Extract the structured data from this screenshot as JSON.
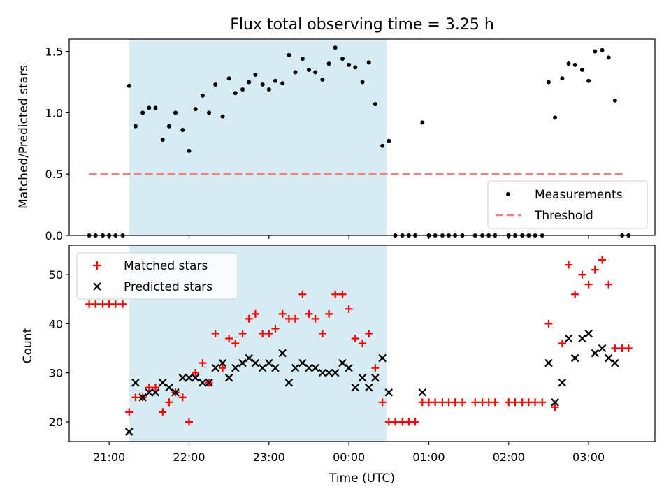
{
  "chart_data": {
    "type": "scatter",
    "title": "Flux total observing time = 3.25 h",
    "xlabel": "Time (UTC)",
    "x_tick_labels": [
      "21:00",
      "22:00",
      "23:00",
      "00:00",
      "01:00",
      "02:00",
      "03:00"
    ],
    "x_tick_hours": [
      21,
      22,
      23,
      24,
      25,
      26,
      27
    ],
    "xlim": [
      20.5,
      27.83
    ],
    "shaded_interval": [
      21.25,
      24.47
    ],
    "colors": {
      "shade": "#add8e6",
      "matched": "#ff0000",
      "predicted": "#000000",
      "threshold": "#f08080",
      "measurement": "#000000"
    },
    "grid": false,
    "panels": [
      {
        "ylabel": "Matched/Predicted stars",
        "ylim": [
          0,
          1.6
        ],
        "y_ticks": [
          0.0,
          0.5,
          1.0,
          1.5
        ],
        "y_tick_labels": [
          "0.0",
          "0.5",
          "1.0",
          "1.5"
        ],
        "legend_position": "lower-right",
        "legend": [
          "Measurements",
          "Threshold"
        ],
        "threshold": {
          "y": 0.5,
          "x_range": [
            20.75,
            27.45
          ]
        },
        "series": [
          {
            "name": "Measurements",
            "marker": "dot",
            "points": [
              [
                20.75,
                0
              ],
              [
                20.83,
                0
              ],
              [
                20.92,
                0
              ],
              [
                21.0,
                0
              ],
              [
                21.08,
                0
              ],
              [
                21.17,
                0
              ],
              [
                21.25,
                1.22
              ],
              [
                21.33,
                0.89
              ],
              [
                21.42,
                1.0
              ],
              [
                21.5,
                1.04
              ],
              [
                21.58,
                1.04
              ],
              [
                21.67,
                0.78
              ],
              [
                21.75,
                0.89
              ],
              [
                21.83,
                1.0
              ],
              [
                21.92,
                0.86
              ],
              [
                22.0,
                0.69
              ],
              [
                22.08,
                1.03
              ],
              [
                22.17,
                1.14
              ],
              [
                22.25,
                1.0
              ],
              [
                22.33,
                1.23
              ],
              [
                22.42,
                0.97
              ],
              [
                22.5,
                1.28
              ],
              [
                22.58,
                1.16
              ],
              [
                22.67,
                1.19
              ],
              [
                22.75,
                1.25
              ],
              [
                22.83,
                1.31
              ],
              [
                22.92,
                1.23
              ],
              [
                23.0,
                1.19
              ],
              [
                23.08,
                1.26
              ],
              [
                23.17,
                1.24
              ],
              [
                23.25,
                1.47
              ],
              [
                23.33,
                1.33
              ],
              [
                23.42,
                1.44
              ],
              [
                23.5,
                1.35
              ],
              [
                23.58,
                1.33
              ],
              [
                23.67,
                1.27
              ],
              [
                23.75,
                1.4
              ],
              [
                23.83,
                1.53
              ],
              [
                23.92,
                1.44
              ],
              [
                24.0,
                1.39
              ],
              [
                24.08,
                1.37
              ],
              [
                24.17,
                1.25
              ],
              [
                24.25,
                1.41
              ],
              [
                24.33,
                1.07
              ],
              [
                24.42,
                0.73
              ],
              [
                24.5,
                0.77
              ],
              [
                24.58,
                0
              ],
              [
                24.67,
                0
              ],
              [
                24.75,
                0
              ],
              [
                24.83,
                0
              ],
              [
                24.92,
                0.92
              ],
              [
                25.0,
                0
              ],
              [
                25.08,
                0
              ],
              [
                25.17,
                0
              ],
              [
                25.25,
                0
              ],
              [
                25.33,
                0
              ],
              [
                25.42,
                0
              ],
              [
                25.58,
                0
              ],
              [
                25.67,
                0
              ],
              [
                25.75,
                0
              ],
              [
                25.83,
                0
              ],
              [
                26.0,
                0
              ],
              [
                26.08,
                0
              ],
              [
                26.17,
                0
              ],
              [
                26.25,
                0
              ],
              [
                26.33,
                0
              ],
              [
                26.42,
                0
              ],
              [
                26.5,
                1.25
              ],
              [
                26.58,
                0.96
              ],
              [
                26.67,
                1.28
              ],
              [
                26.75,
                1.4
              ],
              [
                26.83,
                1.39
              ],
              [
                26.92,
                1.35
              ],
              [
                27.0,
                1.26
              ],
              [
                27.08,
                1.5
              ],
              [
                27.17,
                1.51
              ],
              [
                27.25,
                1.45
              ],
              [
                27.33,
                1.1
              ],
              [
                27.42,
                0
              ],
              [
                27.5,
                0
              ]
            ]
          }
        ]
      },
      {
        "ylabel": "Count",
        "ylim": [
          16,
          56
        ],
        "y_ticks": [
          20,
          30,
          40,
          50
        ],
        "y_tick_labels": [
          "20",
          "30",
          "40",
          "50"
        ],
        "legend_position": "upper-left",
        "legend": [
          "Matched stars",
          "Predicted stars"
        ],
        "series": [
          {
            "name": "Matched stars",
            "marker": "plus",
            "points": [
              [
                20.75,
                44
              ],
              [
                20.83,
                44
              ],
              [
                20.92,
                44
              ],
              [
                21.0,
                44
              ],
              [
                21.08,
                44
              ],
              [
                21.17,
                44
              ],
              [
                21.25,
                22
              ],
              [
                21.33,
                25
              ],
              [
                21.42,
                25
              ],
              [
                21.5,
                27
              ],
              [
                21.58,
                27
              ],
              [
                21.67,
                22
              ],
              [
                21.75,
                24
              ],
              [
                21.83,
                26
              ],
              [
                21.92,
                25
              ],
              [
                22.0,
                20
              ],
              [
                22.08,
                30
              ],
              [
                22.17,
                32
              ],
              [
                22.25,
                28
              ],
              [
                22.33,
                38
              ],
              [
                22.42,
                31
              ],
              [
                22.5,
                37
              ],
              [
                22.58,
                36
              ],
              [
                22.67,
                38
              ],
              [
                22.75,
                41
              ],
              [
                22.83,
                42
              ],
              [
                22.92,
                38
              ],
              [
                23.0,
                38
              ],
              [
                23.08,
                39
              ],
              [
                23.17,
                42
              ],
              [
                23.25,
                41
              ],
              [
                23.33,
                41
              ],
              [
                23.42,
                46
              ],
              [
                23.5,
                42
              ],
              [
                23.58,
                41
              ],
              [
                23.67,
                38
              ],
              [
                23.75,
                42
              ],
              [
                23.83,
                46
              ],
              [
                23.92,
                46
              ],
              [
                24.0,
                43
              ],
              [
                24.08,
                37
              ],
              [
                24.17,
                36
              ],
              [
                24.25,
                38
              ],
              [
                24.33,
                31
              ],
              [
                24.42,
                24
              ],
              [
                24.5,
                20
              ],
              [
                24.58,
                20
              ],
              [
                24.67,
                20
              ],
              [
                24.75,
                20
              ],
              [
                24.83,
                20
              ],
              [
                24.92,
                24
              ],
              [
                25.0,
                24
              ],
              [
                25.08,
                24
              ],
              [
                25.17,
                24
              ],
              [
                25.25,
                24
              ],
              [
                25.33,
                24
              ],
              [
                25.42,
                24
              ],
              [
                25.58,
                24
              ],
              [
                25.67,
                24
              ],
              [
                25.75,
                24
              ],
              [
                25.83,
                24
              ],
              [
                26.0,
                24
              ],
              [
                26.08,
                24
              ],
              [
                26.17,
                24
              ],
              [
                26.25,
                24
              ],
              [
                26.33,
                24
              ],
              [
                26.42,
                24
              ],
              [
                26.5,
                40
              ],
              [
                26.58,
                23
              ],
              [
                26.67,
                36
              ],
              [
                26.75,
                52
              ],
              [
                26.83,
                46
              ],
              [
                26.92,
                50
              ],
              [
                27.0,
                48
              ],
              [
                27.08,
                51
              ],
              [
                27.17,
                53
              ],
              [
                27.25,
                48
              ],
              [
                27.33,
                35
              ],
              [
                27.42,
                35
              ],
              [
                27.5,
                35
              ]
            ]
          },
          {
            "name": "Predicted stars",
            "marker": "x",
            "points": [
              [
                21.25,
                18
              ],
              [
                21.33,
                28
              ],
              [
                21.42,
                25
              ],
              [
                21.5,
                26
              ],
              [
                21.58,
                26
              ],
              [
                21.67,
                28
              ],
              [
                21.75,
                27
              ],
              [
                21.83,
                26
              ],
              [
                21.92,
                29
              ],
              [
                22.0,
                29
              ],
              [
                22.08,
                29
              ],
              [
                22.17,
                28
              ],
              [
                22.25,
                28
              ],
              [
                22.33,
                31
              ],
              [
                22.42,
                32
              ],
              [
                22.5,
                29
              ],
              [
                22.58,
                31
              ],
              [
                22.67,
                32
              ],
              [
                22.75,
                33
              ],
              [
                22.83,
                32
              ],
              [
                22.92,
                31
              ],
              [
                23.0,
                32
              ],
              [
                23.08,
                31
              ],
              [
                23.17,
                34
              ],
              [
                23.25,
                28
              ],
              [
                23.33,
                31
              ],
              [
                23.42,
                32
              ],
              [
                23.5,
                31
              ],
              [
                23.58,
                31
              ],
              [
                23.67,
                30
              ],
              [
                23.75,
                30
              ],
              [
                23.83,
                30
              ],
              [
                23.92,
                32
              ],
              [
                24.0,
                31
              ],
              [
                24.08,
                27
              ],
              [
                24.17,
                29
              ],
              [
                24.25,
                27
              ],
              [
                24.33,
                29
              ],
              [
                24.42,
                33
              ],
              [
                24.5,
                26
              ],
              [
                24.92,
                26
              ],
              [
                26.5,
                32
              ],
              [
                26.58,
                24
              ],
              [
                26.67,
                28
              ],
              [
                26.75,
                37
              ],
              [
                26.83,
                33
              ],
              [
                26.92,
                37
              ],
              [
                27.0,
                38
              ],
              [
                27.08,
                34
              ],
              [
                27.17,
                35
              ],
              [
                27.25,
                33
              ],
              [
                27.33,
                32
              ]
            ]
          }
        ]
      }
    ]
  }
}
